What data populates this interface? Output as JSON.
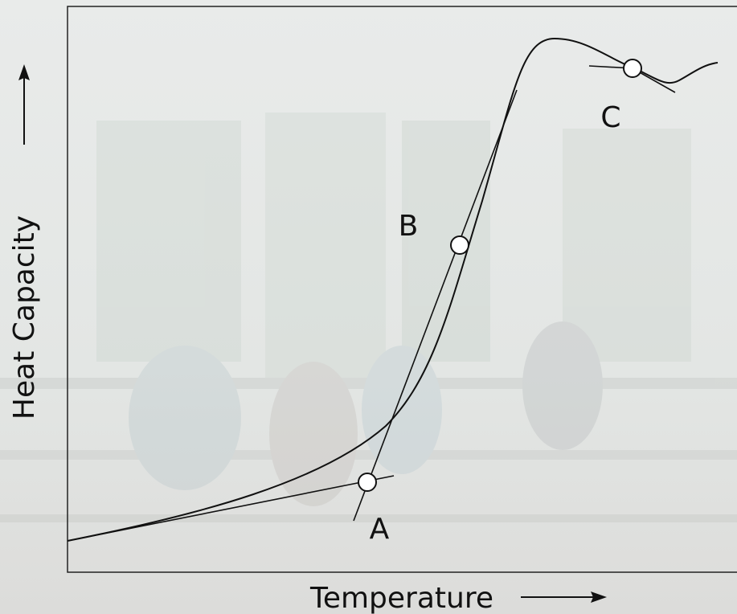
{
  "axes": {
    "y_label": "Heat Capacity",
    "x_label": "Temperature"
  },
  "points": [
    {
      "label": "A"
    },
    {
      "label": "B"
    },
    {
      "label": "C"
    }
  ]
}
